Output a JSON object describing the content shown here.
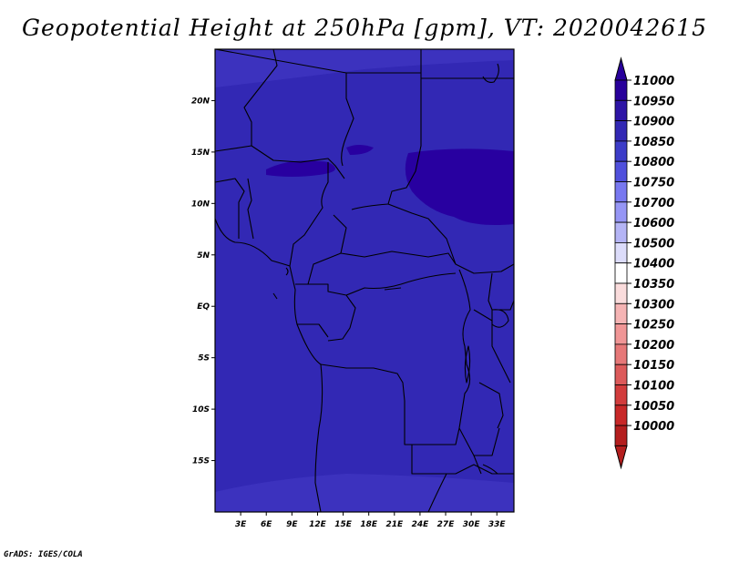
{
  "title": "Geopotential Height at 250hPa [gpm], VT: 2020042615",
  "credit": "GrADS: IGES/COLA",
  "map": {
    "lon_range": [
      0,
      35
    ],
    "lat_range": [
      -20,
      25
    ],
    "lat_ticks": [
      {
        "value": 20,
        "label": "20N"
      },
      {
        "value": 15,
        "label": "15N"
      },
      {
        "value": 10,
        "label": "10N"
      },
      {
        "value": 5,
        "label": "5N"
      },
      {
        "value": 0,
        "label": "EQ"
      },
      {
        "value": -5,
        "label": "5S"
      },
      {
        "value": -10,
        "label": "10S"
      },
      {
        "value": -15,
        "label": "15S"
      }
    ],
    "lon_ticks": [
      {
        "value": 3,
        "label": "3E"
      },
      {
        "value": 6,
        "label": "6E"
      },
      {
        "value": 9,
        "label": "9E"
      },
      {
        "value": 12,
        "label": "12E"
      },
      {
        "value": 15,
        "label": "15E"
      },
      {
        "value": 18,
        "label": "18E"
      },
      {
        "value": 21,
        "label": "21E"
      },
      {
        "value": 24,
        "label": "24E"
      },
      {
        "value": 27,
        "label": "27E"
      },
      {
        "value": 30,
        "label": "30E"
      },
      {
        "value": 33,
        "label": "33E"
      }
    ],
    "fill_color": "#3228b4",
    "upper_band_color": "#3c32be",
    "high_core_color": "#2800a0",
    "border_color": "#000000"
  },
  "colorbar": {
    "levels": [
      {
        "label": "11000",
        "color": "#28009b"
      },
      {
        "label": "10950",
        "color": "#2d14a5"
      },
      {
        "label": "10900",
        "color": "#3228b4"
      },
      {
        "label": "10850",
        "color": "#3c3cc8"
      },
      {
        "label": "10800",
        "color": "#5050dc"
      },
      {
        "label": "10750",
        "color": "#7878f0"
      },
      {
        "label": "10700",
        "color": "#9696f5"
      },
      {
        "label": "10600",
        "color": "#b4b4f5"
      },
      {
        "label": "10500",
        "color": "#dcdcfa"
      },
      {
        "label": "10400",
        "color": "#ffffff"
      },
      {
        "label": "10350",
        "color": "#fadcdc"
      },
      {
        "label": "10300",
        "color": "#f5b4b4"
      },
      {
        "label": "10250",
        "color": "#f09696"
      },
      {
        "label": "10200",
        "color": "#e67878"
      },
      {
        "label": "10150",
        "color": "#dc5a5a"
      },
      {
        "label": "10100",
        "color": "#d23c3c"
      },
      {
        "label": "10050",
        "color": "#c82828"
      },
      {
        "label": "10000",
        "color": "#b41e1e"
      }
    ],
    "top_arrow_color": "#28009b",
    "bottom_arrow_color": "#b41e1e"
  }
}
